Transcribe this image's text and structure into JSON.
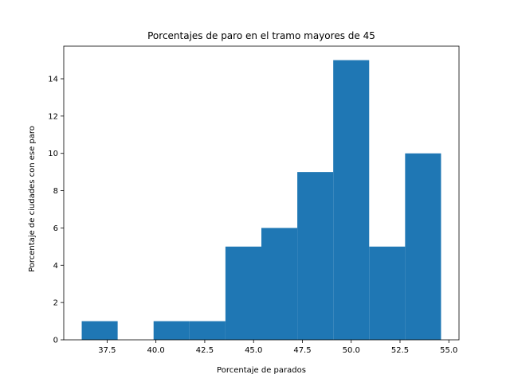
{
  "chart_data": {
    "type": "bar",
    "title": "Porcentajes de paro en el tramo mayores de 45",
    "xlabel": "Porcentaje de parados",
    "ylabel": "Porcentaje de ciudades con ese paro",
    "bin_edges": [
      36.2,
      38.04,
      39.88,
      41.72,
      43.56,
      45.4,
      47.24,
      49.08,
      50.92,
      52.76,
      54.6
    ],
    "counts": [
      1,
      0,
      1,
      1,
      5,
      6,
      9,
      15,
      5,
      10
    ],
    "xlim": [
      35.28,
      55.52
    ],
    "ylim": [
      0,
      15.75
    ],
    "xticks": [
      37.5,
      40.0,
      42.5,
      45.0,
      47.5,
      50.0,
      52.5,
      55.0
    ],
    "xtick_labels": [
      "37.5",
      "40.0",
      "42.5",
      "45.0",
      "47.5",
      "50.0",
      "52.5",
      "55.0"
    ],
    "yticks": [
      0,
      2,
      4,
      6,
      8,
      10,
      12,
      14
    ],
    "ytick_labels": [
      "0",
      "2",
      "4",
      "6",
      "8",
      "10",
      "12",
      "14"
    ],
    "bar_color": "#1f77b4",
    "grid": false,
    "legend": "none"
  }
}
